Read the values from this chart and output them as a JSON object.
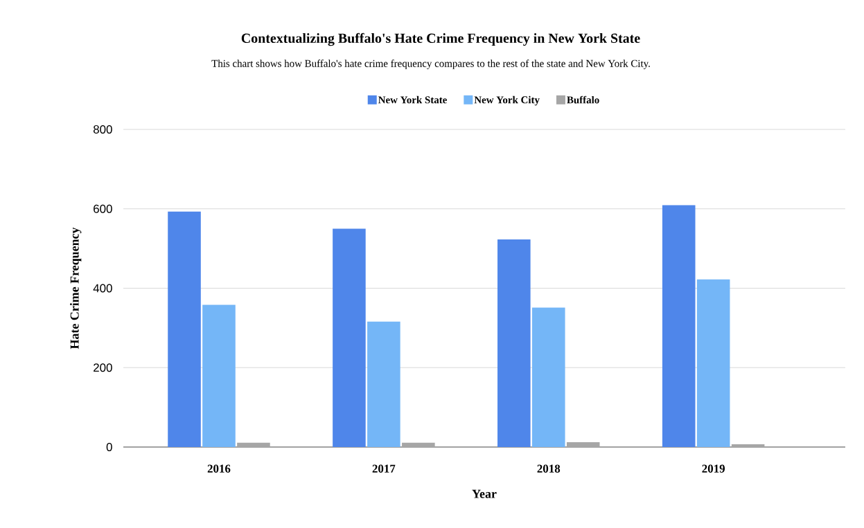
{
  "chart_data": {
    "type": "bar",
    "title": "Contextualizing Buffalo's Hate Crime Frequency in New York State",
    "subtitle": "This chart shows how Buffalo's hate crime frequency compares to the rest of the state and New York City.",
    "xlabel": "Year",
    "ylabel": "Hate Crime Frequency",
    "categories": [
      "2016",
      "2017",
      "2018",
      "2019"
    ],
    "series": [
      {
        "name": "New York State",
        "color": "#4f86ea",
        "values": [
          593,
          550,
          523,
          609
        ]
      },
      {
        "name": "New York City",
        "color": "#74b6f7",
        "values": [
          358,
          316,
          351,
          422
        ]
      },
      {
        "name": "Buffalo",
        "color": "#a6a6a6",
        "values": [
          11,
          11,
          12,
          7
        ]
      }
    ],
    "ylim": [
      0,
      800
    ],
    "yticks": [
      0,
      200,
      400,
      600,
      800
    ],
    "grid": "y",
    "legend": "top"
  }
}
